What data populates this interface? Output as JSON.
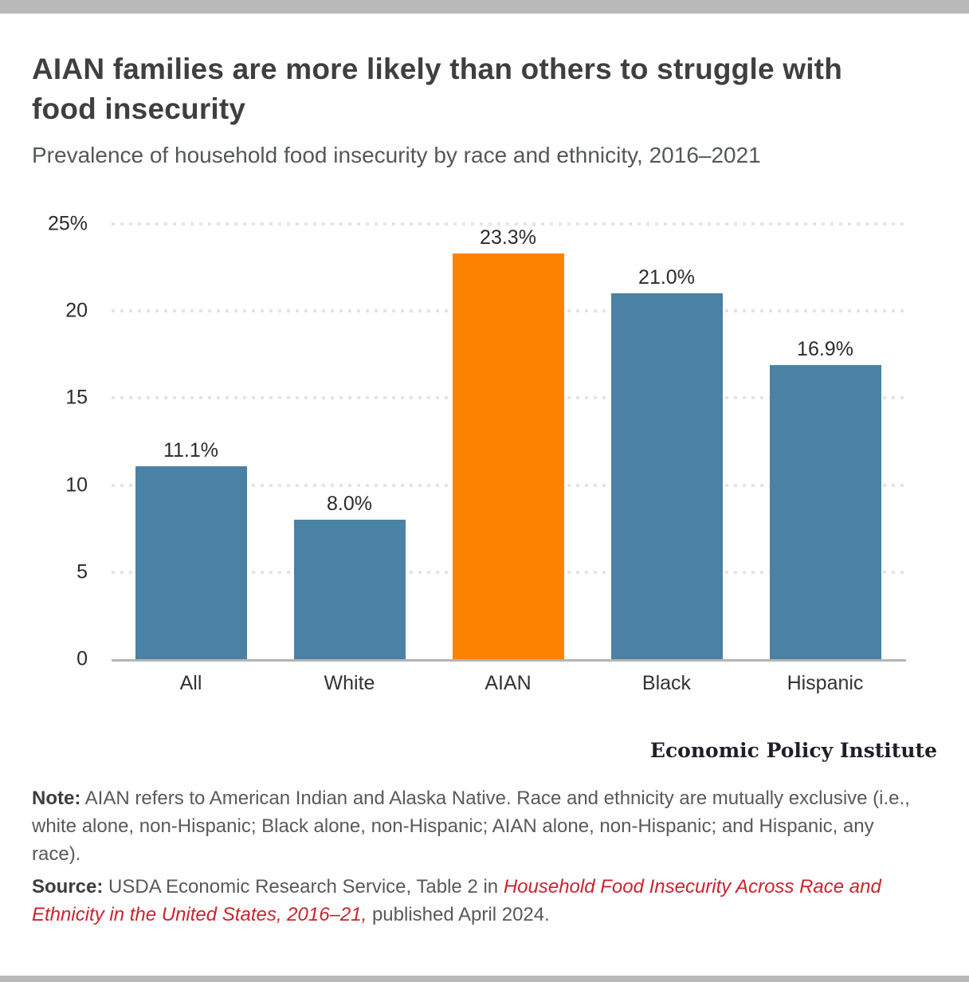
{
  "header": {
    "title": "AIAN families are more likely than others to struggle with food insecurity",
    "subtitle": "Prevalence of household food insecurity by race and ethnicity, 2016–2021"
  },
  "brand": {
    "name": "Economic Policy Institute"
  },
  "note": {
    "label": "Note:",
    "text": " AIAN refers to American Indian and Alaska Native. Race and ethnicity are mutually exclusive (i.e., white alone, non-Hispanic; Black alone, non-Hispanic; AIAN alone, non-Hispanic; and Hispanic, any race)."
  },
  "source": {
    "label": "Source:",
    "before_link": " USDA Economic Research Service, Table 2 in ",
    "link": "Household Food Insecurity Across Race and Ethnicity in the United States, 2016–21,",
    "after_link": " published April 2024."
  },
  "chart_data": {
    "type": "bar",
    "categories": [
      "All",
      "White",
      "AIAN",
      "Black",
      "Hispanic"
    ],
    "values": [
      11.1,
      8.0,
      23.3,
      21.0,
      16.9
    ],
    "value_labels": [
      "11.1%",
      "8.0%",
      "23.3%",
      "21.0%",
      "16.9%"
    ],
    "bar_colors": [
      "#4a81a5",
      "#4a81a5",
      "#fd8200",
      "#4a81a5",
      "#4a81a5"
    ],
    "highlight_category": "AIAN",
    "title": "AIAN families are more likely than others to struggle with food insecurity",
    "subtitle": "Prevalence of household food insecurity by race and ethnicity, 2016–2021",
    "xlabel": "",
    "ylabel": "",
    "ylim": [
      0,
      25
    ],
    "yticks": [
      0,
      5,
      10,
      15,
      20,
      25
    ],
    "ytick_labels": [
      "0",
      "5",
      "10",
      "15",
      "20",
      "25%"
    ],
    "grid": "dotted horizontal gridlines",
    "legend": "none",
    "colors": {
      "default_bar": "#4a81a5",
      "highlight_bar": "#fd8200",
      "gridline": "#e5e5e5",
      "baseline": "#b5b5b5",
      "frame_bar": "#b9b9b9"
    }
  }
}
